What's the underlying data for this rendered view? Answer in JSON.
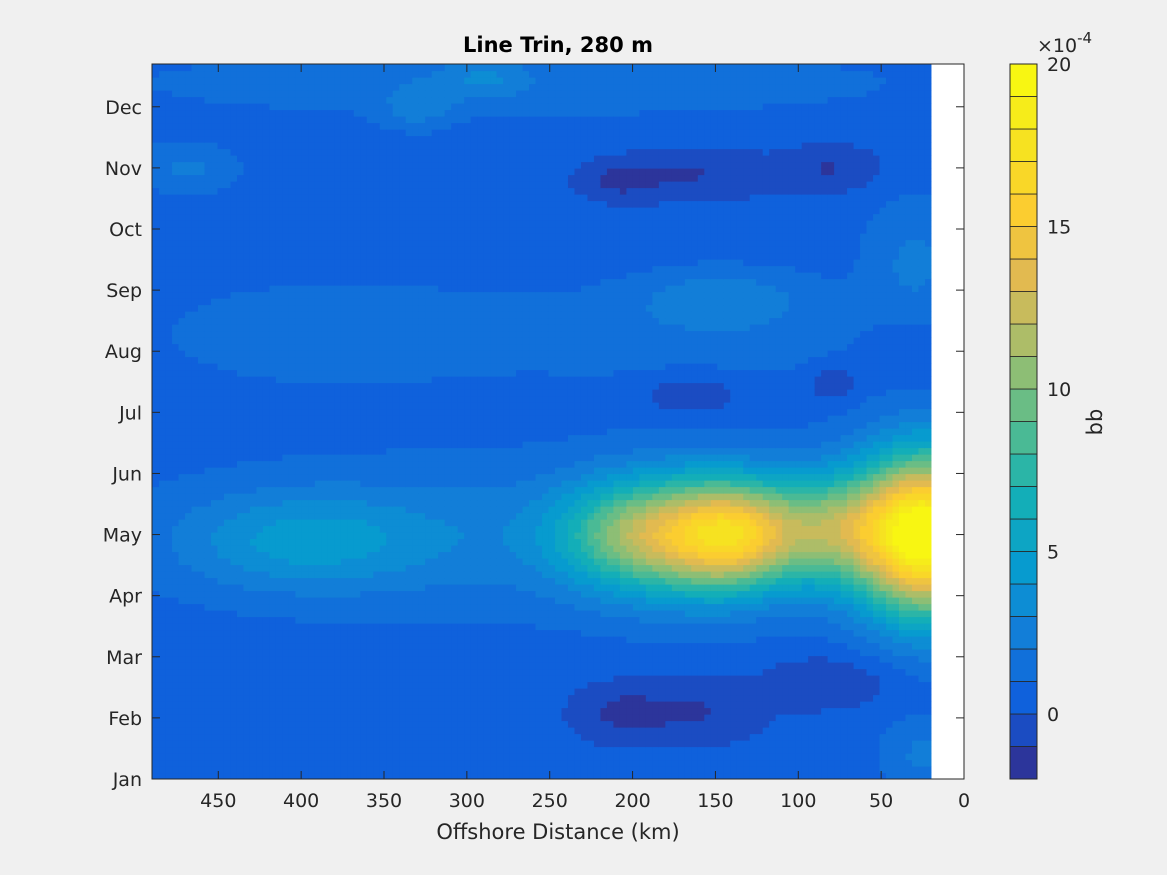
{
  "chart_data": {
    "type": "heatmap",
    "subtype": "filled-contour",
    "title": "Line Trin, 280 m",
    "xlabel": "Offshore Distance (km)",
    "ylabel": "",
    "x_direction": "reversed",
    "xlim": [
      0,
      490
    ],
    "x_ticks": [
      450,
      400,
      350,
      300,
      250,
      200,
      150,
      100,
      50,
      0
    ],
    "y_months": [
      "Jan",
      "Feb",
      "Mar",
      "Apr",
      "May",
      "Jun",
      "Jul",
      "Aug",
      "Sep",
      "Oct",
      "Nov",
      "Dec"
    ],
    "ylim_month_index": [
      0,
      11.7
    ],
    "no_data_region_km": [
      0,
      20
    ],
    "colorbar": {
      "label": "bb",
      "exponent_label": "×10",
      "exponent_sup": "-4",
      "scale": 0.0001,
      "clim": [
        -2,
        20
      ],
      "tick_values": [
        0,
        5,
        10,
        15,
        20
      ],
      "tick_labels": [
        "0",
        "5",
        "10",
        "15",
        "20"
      ],
      "level_step": 1,
      "colormap": "parula"
    },
    "background_value": 0.5,
    "features": [
      {
        "x_km": 165,
        "month": 4.0,
        "value": 9.5,
        "rx_km": 45,
        "ry_month": 0.95
      },
      {
        "x_km": 135,
        "month": 4.0,
        "value": 8.5,
        "rx_km": 35,
        "ry_month": 0.85
      },
      {
        "x_km": 80,
        "month": 4.1,
        "value": 8.3,
        "rx_km": 40,
        "ry_month": 0.9
      },
      {
        "x_km": 210,
        "month": 4.0,
        "value": 5.5,
        "rx_km": 40,
        "ry_month": 0.85
      },
      {
        "x_km": 22,
        "month": 4.0,
        "value": 19.5,
        "rx_km": 40,
        "ry_month": 1.3
      },
      {
        "x_km": 400,
        "month": 3.9,
        "value": 3.6,
        "rx_km": 75,
        "ry_month": 0.8
      },
      {
        "x_km": 240,
        "month": 4.0,
        "value": 2.6,
        "rx_km": 200,
        "ry_month": 1.2
      },
      {
        "x_km": 210,
        "month": 1.1,
        "value": -1.0,
        "rx_km": 30,
        "ry_month": 0.5
      },
      {
        "x_km": 160,
        "month": 1.1,
        "value": -1.0,
        "rx_km": 40,
        "ry_month": 0.55
      },
      {
        "x_km": 80,
        "month": 1.6,
        "value": -1.0,
        "rx_km": 40,
        "ry_month": 0.45
      },
      {
        "x_km": 160,
        "month": 9.9,
        "value": -1.0,
        "rx_km": 45,
        "ry_month": 0.45
      },
      {
        "x_km": 80,
        "month": 10.0,
        "value": -1.0,
        "rx_km": 30,
        "ry_month": 0.4
      },
      {
        "x_km": 210,
        "month": 9.8,
        "value": -1.0,
        "rx_km": 25,
        "ry_month": 0.35
      },
      {
        "x_km": 165,
        "month": 6.3,
        "value": -1.0,
        "rx_km": 30,
        "ry_month": 0.35
      },
      {
        "x_km": 80,
        "month": 6.5,
        "value": -1.0,
        "rx_km": 15,
        "ry_month": 0.3
      },
      {
        "x_km": 35,
        "month": 7.0,
        "value": -0.5,
        "rx_km": 25,
        "ry_month": 0.5
      },
      {
        "x_km": 380,
        "month": 7.3,
        "value": 1.6,
        "rx_km": 110,
        "ry_month": 0.9
      },
      {
        "x_km": 160,
        "month": 7.3,
        "value": 1.6,
        "rx_km": 120,
        "ry_month": 0.8
      },
      {
        "x_km": 145,
        "month": 7.9,
        "value": 2.3,
        "rx_km": 50,
        "ry_month": 0.45
      },
      {
        "x_km": 30,
        "month": 8.5,
        "value": 2.2,
        "rx_km": 30,
        "ry_month": 1.0
      },
      {
        "x_km": 270,
        "month": 11.4,
        "value": 1.6,
        "rx_km": 250,
        "ry_month": 0.6
      },
      {
        "x_km": 290,
        "month": 11.5,
        "value": 2.2,
        "rx_km": 25,
        "ry_month": 0.35
      },
      {
        "x_km": 470,
        "month": 10.0,
        "value": 2.2,
        "rx_km": 30,
        "ry_month": 0.4
      },
      {
        "x_km": 330,
        "month": 11.0,
        "value": 2.2,
        "rx_km": 20,
        "ry_month": 0.35
      },
      {
        "x_km": 25,
        "month": 0.4,
        "value": 2.2,
        "rx_km": 25,
        "ry_month": 0.6
      }
    ]
  }
}
